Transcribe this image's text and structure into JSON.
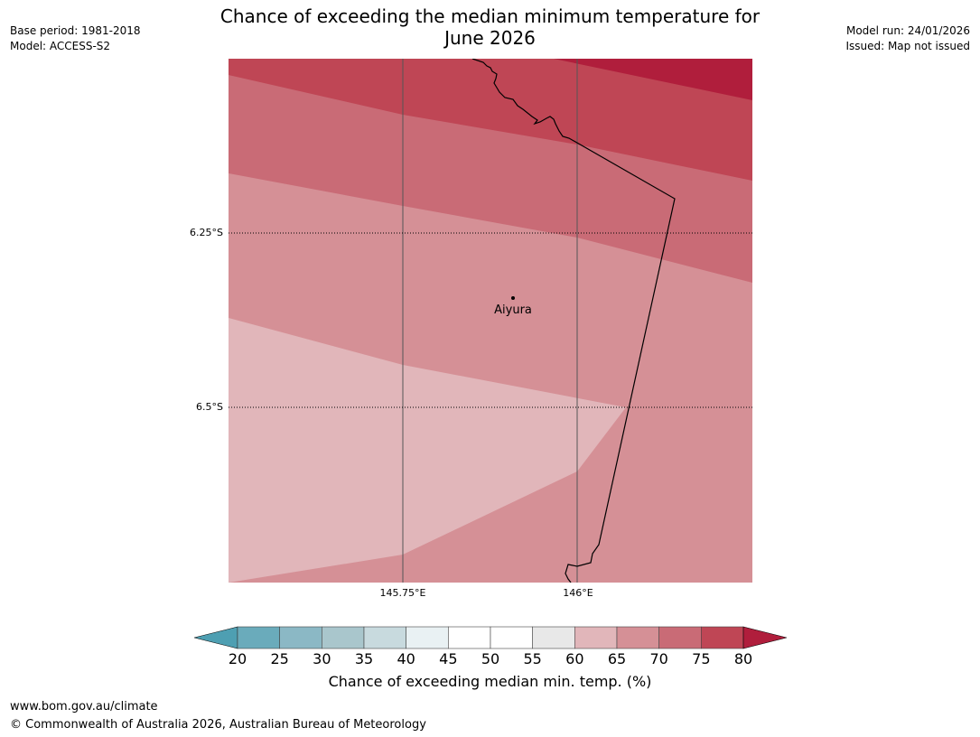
{
  "title_line1": "Chance of exceeding the median minimum temperature for",
  "title_line2": "June 2026",
  "meta_left": {
    "base_period": "Base period: 1981-2018",
    "model": "Model: ACCESS-S2"
  },
  "meta_right": {
    "model_run": "Model run: 24/01/2026",
    "issued": "Issued: Map not issued"
  },
  "map": {
    "lat_labels": [
      "6.25°S",
      "6.5°S"
    ],
    "lon_labels": [
      "145.75°E",
      "146°E"
    ],
    "city": {
      "name": "Aiyura"
    }
  },
  "colorbar": {
    "ticks": [
      "20",
      "25",
      "30",
      "35",
      "40",
      "45",
      "50",
      "55",
      "60",
      "65",
      "70",
      "75",
      "80"
    ],
    "label": "Chance of exceeding median min. temp. (%)",
    "colors": [
      "#4e9fb2",
      "#6aabbb",
      "#8bb8c5",
      "#a9c6cc",
      "#c8dade",
      "#e9f1f3",
      "#ffffff",
      "#ffffff",
      "#e8e8e8",
      "#e1b6ba",
      "#d59096",
      "#c96b76",
      "#bf4655",
      "#b01e3c"
    ]
  },
  "footer": {
    "url": "www.bom.gov.au/climate",
    "copyright": "© Commonwealth of Australia 2026, Australian Bureau of Meteorology"
  }
}
